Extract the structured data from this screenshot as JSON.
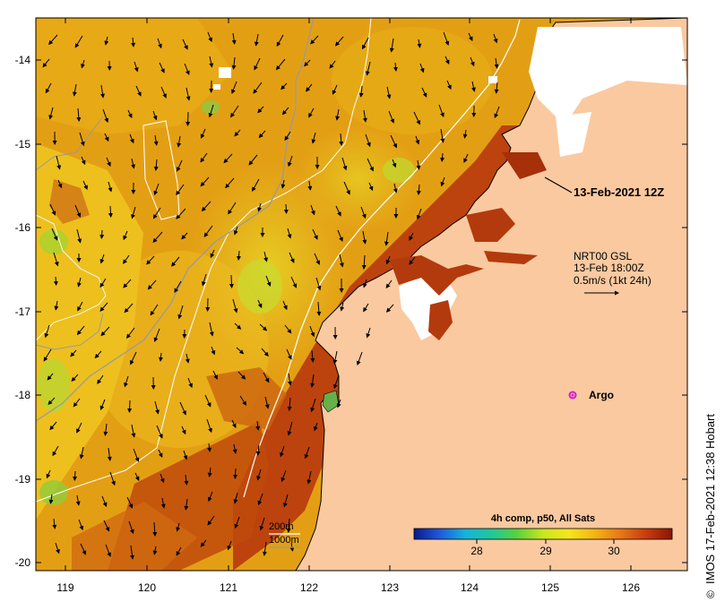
{
  "map": {
    "lon_ticks": [
      "119",
      "120",
      "121",
      "122",
      "123",
      "124",
      "125",
      "126"
    ],
    "lat_ticks": [
      "-14",
      "-15",
      "-16",
      "-17",
      "-18",
      "-19",
      "-20"
    ],
    "colors": {
      "land": "#fac9a0",
      "cloud": "#ffffff",
      "coastline": "#000000",
      "contour_200m": "#ffffff",
      "contour_1000m": "#a9a9a9",
      "argo": "#d21ad2"
    }
  },
  "annotations": {
    "date_label": "13-Feb-2021 12Z",
    "currents_line1": "NRT00 GSL",
    "currents_line2": "13-Feb 18:00Z",
    "currents_line3": "0.5m/s (1kt 24h)",
    "argo_label": "Argo",
    "contour_200m_label": "200m",
    "contour_1000m_label": "1000m"
  },
  "colorbar": {
    "title": "4h comp, p50, All Sats",
    "ticks": [
      "28",
      "29",
      "30"
    ],
    "stops": [
      "#0a1a8c",
      "#1e5adc",
      "#14b4dc",
      "#1ec89a",
      "#5ad23c",
      "#c8e61e",
      "#f5e61e",
      "#f5b414",
      "#e67814",
      "#c83c0a",
      "#8c1405"
    ]
  },
  "credit": "IMOS 17-Feb-2021 12:38 Hobart",
  "credit_symbol": "©"
}
